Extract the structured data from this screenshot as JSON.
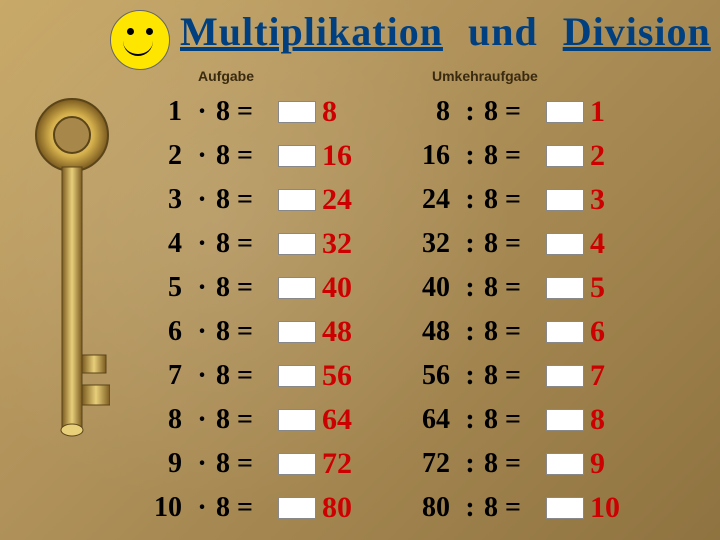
{
  "title": {
    "word1": "Multiplikation",
    "mid": "und",
    "word2": "Division"
  },
  "subhead_left": "Aufgabe",
  "subhead_right": "Umkehraufgabe",
  "base": "8",
  "mult_op": "·",
  "div_op": ":",
  "eq": "=",
  "rows": [
    {
      "n": "1",
      "product": "8",
      "ans_m": "8",
      "ans_d": "1"
    },
    {
      "n": "2",
      "product": "16",
      "ans_m": "16",
      "ans_d": "2"
    },
    {
      "n": "3",
      "product": "24",
      "ans_m": "24",
      "ans_d": "3"
    },
    {
      "n": "4",
      "product": "32",
      "ans_m": "32",
      "ans_d": "4"
    },
    {
      "n": "5",
      "product": "40",
      "ans_m": "40",
      "ans_d": "5"
    },
    {
      "n": "6",
      "product": "48",
      "ans_m": "48",
      "ans_d": "6"
    },
    {
      "n": "7",
      "product": "56",
      "ans_m": "56",
      "ans_d": "7"
    },
    {
      "n": "8",
      "product": "64",
      "ans_m": "64",
      "ans_d": "8"
    },
    {
      "n": "9",
      "product": "72",
      "ans_m": "72",
      "ans_d": "9"
    },
    {
      "n": "10",
      "product": "80",
      "ans_m": "80",
      "ans_d": "10"
    }
  ],
  "style": {
    "title_color": "#004080",
    "answer_color": "#cc0000",
    "bg_colors": [
      "#c8a968",
      "#b0925a",
      "#8f7340"
    ],
    "title_fontsize": 40,
    "row_fontsize": 28,
    "answer_fontsize": 30
  }
}
